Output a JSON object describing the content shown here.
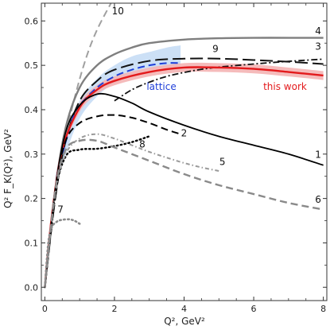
{
  "chart_data": {
    "type": "line",
    "xlabel": "Q², GeV²",
    "ylabel": "Q² F_K(Q²), GeV²",
    "xlim": [
      -0.1,
      8.1
    ],
    "ylim": [
      -0.03,
      0.64
    ],
    "x_ticks": [
      {
        "value": 0,
        "label": "0"
      },
      {
        "value": 2,
        "label": "2"
      },
      {
        "value": 4,
        "label": "4"
      },
      {
        "value": 6,
        "label": "6"
      },
      {
        "value": 8,
        "label": "8"
      }
    ],
    "y_ticks": [
      {
        "value": 0.0,
        "label": "0.0"
      },
      {
        "value": 0.1,
        "label": "0.1"
      },
      {
        "value": 0.2,
        "label": "0.2"
      },
      {
        "value": 0.3,
        "label": "0.3"
      },
      {
        "value": 0.4,
        "label": "0.4"
      },
      {
        "value": 0.5,
        "label": "0.5"
      },
      {
        "value": 0.6,
        "label": "0.6"
      }
    ],
    "grid": false,
    "bands": [
      {
        "id": "lattice-band",
        "color": "#c6ddf5",
        "x": [
          0.3,
          0.6,
          1.0,
          1.5,
          2.0,
          2.5,
          3.0,
          3.5,
          3.9
        ],
        "upper": [
          0.25,
          0.35,
          0.42,
          0.47,
          0.5,
          0.52,
          0.53,
          0.54,
          0.545
        ],
        "lower": [
          0.22,
          0.3,
          0.38,
          0.43,
          0.46,
          0.475,
          0.49,
          0.495,
          0.5
        ]
      },
      {
        "id": "this-work-band",
        "color": "#f4b4b4",
        "x": [
          0.0,
          0.2,
          0.5,
          1.0,
          1.5,
          2.0,
          3.0,
          4.0,
          5.0,
          6.0,
          7.0,
          8.0
        ],
        "upper": [
          0.0,
          0.17,
          0.32,
          0.415,
          0.455,
          0.475,
          0.495,
          0.505,
          0.505,
          0.502,
          0.495,
          0.487
        ],
        "lower": [
          0.0,
          0.15,
          0.3,
          0.395,
          0.435,
          0.455,
          0.475,
          0.485,
          0.485,
          0.482,
          0.475,
          0.467
        ]
      }
    ],
    "series": [
      {
        "id": "curve-10",
        "label": "10",
        "color": "#a0a0a0",
        "style": "dashed",
        "width": 2,
        "x": [
          0.0,
          0.3,
          0.6,
          0.9,
          1.2,
          1.5,
          1.9
        ],
        "y": [
          0.0,
          0.2,
          0.34,
          0.44,
          0.52,
          0.58,
          0.64
        ],
        "label_xy": [
          2.1,
          0.615
        ]
      },
      {
        "id": "curve-4",
        "label": "4",
        "color": "#7f7f7f",
        "style": "solid",
        "width": 2.4,
        "x": [
          0.0,
          0.3,
          0.6,
          1.0,
          1.5,
          2.0,
          2.5,
          3.0,
          4.0,
          5.0,
          6.0,
          7.0,
          8.0
        ],
        "y": [
          0.0,
          0.22,
          0.36,
          0.45,
          0.5,
          0.525,
          0.54,
          0.55,
          0.558,
          0.561,
          0.562,
          0.562,
          0.562
        ],
        "label_xy": [
          7.85,
          0.57
        ]
      },
      {
        "id": "curve-9",
        "label": "9",
        "color": "#111111",
        "style": "longdash",
        "width": 2,
        "x": [
          0.0,
          0.3,
          0.6,
          1.0,
          1.5,
          2.0,
          3.0,
          4.0,
          5.0,
          6.0,
          7.0,
          8.0
        ],
        "y": [
          0.0,
          0.2,
          0.33,
          0.42,
          0.465,
          0.49,
          0.51,
          0.515,
          0.515,
          0.512,
          0.508,
          0.503
        ],
        "label_xy": [
          4.9,
          0.53
        ]
      },
      {
        "id": "curve-3",
        "label": "3",
        "color": "#111111",
        "style": "dashdot",
        "width": 1.8,
        "x": [
          2.0,
          2.5,
          3.0,
          3.5,
          4.0,
          4.5,
          5.0,
          6.0,
          7.0,
          8.0
        ],
        "y": [
          0.42,
          0.445,
          0.462,
          0.475,
          0.484,
          0.491,
          0.496,
          0.503,
          0.509,
          0.514
        ],
        "label_xy": [
          7.85,
          0.535
        ]
      },
      {
        "id": "curve-lattice",
        "label": "",
        "color": "#1f3fd9",
        "style": "dashed",
        "width": 2,
        "x": [
          0.5,
          0.8,
          1.0,
          1.5,
          2.0,
          2.5,
          3.0,
          3.5,
          3.9
        ],
        "y": [
          0.3,
          0.38,
          0.41,
          0.45,
          0.475,
          0.49,
          0.5,
          0.505,
          0.505
        ]
      },
      {
        "id": "curve-this-work",
        "label": "",
        "color": "#e31a1c",
        "style": "solid",
        "width": 2.4,
        "x": [
          0.0,
          0.2,
          0.5,
          1.0,
          1.5,
          2.0,
          3.0,
          4.0,
          5.0,
          6.0,
          7.0,
          8.0
        ],
        "y": [
          0.0,
          0.16,
          0.31,
          0.405,
          0.445,
          0.465,
          0.485,
          0.495,
          0.495,
          0.492,
          0.485,
          0.477
        ]
      },
      {
        "id": "curve-1",
        "label": "1",
        "color": "#000000",
        "style": "solid",
        "width": 1.8,
        "x": [
          0.0,
          0.3,
          0.6,
          1.0,
          1.5,
          2.0,
          2.5,
          3.0,
          4.0,
          5.0,
          6.0,
          7.0,
          8.0
        ],
        "y": [
          0.0,
          0.22,
          0.35,
          0.41,
          0.435,
          0.43,
          0.415,
          0.395,
          0.365,
          0.34,
          0.32,
          0.3,
          0.275
        ],
        "label_xy": [
          7.85,
          0.292
        ]
      },
      {
        "id": "curve-2",
        "label": "2",
        "color": "#000000",
        "style": "dashed",
        "width": 2,
        "x": [
          0.0,
          0.3,
          0.6,
          1.0,
          1.5,
          2.0,
          2.5,
          3.0,
          3.5,
          3.9
        ],
        "y": [
          0.0,
          0.22,
          0.33,
          0.37,
          0.385,
          0.388,
          0.382,
          0.37,
          0.355,
          0.345
        ],
        "label_xy": [
          4.0,
          0.34
        ]
      },
      {
        "id": "curve-8",
        "label": "8",
        "color": "#000000",
        "style": "dotted",
        "width": 2.4,
        "x": [
          0.0,
          0.3,
          0.6,
          1.0,
          1.5,
          2.0,
          2.5,
          3.0
        ],
        "y": [
          0.0,
          0.21,
          0.295,
          0.31,
          0.312,
          0.318,
          0.327,
          0.34
        ],
        "label_xy": [
          2.8,
          0.315
        ]
      },
      {
        "id": "curve-5",
        "label": "5",
        "color": "#9a9a9a",
        "style": "dotdash",
        "width": 2,
        "x": [
          0.0,
          0.3,
          0.6,
          1.0,
          1.5,
          2.0,
          2.5,
          3.0,
          3.5,
          4.0,
          4.5,
          5.0
        ],
        "y": [
          0.0,
          0.21,
          0.3,
          0.335,
          0.345,
          0.335,
          0.32,
          0.305,
          0.292,
          0.28,
          0.27,
          0.262
        ],
        "label_xy": [
          5.1,
          0.275
        ]
      },
      {
        "id": "curve-6",
        "label": "6",
        "color": "#8a8a8a",
        "style": "dashed",
        "width": 2.4,
        "x": [
          0.0,
          0.3,
          0.6,
          1.0,
          1.5,
          2.0,
          3.0,
          4.0,
          5.0,
          6.0,
          7.0,
          8.0
        ],
        "y": [
          0.0,
          0.22,
          0.31,
          0.33,
          0.33,
          0.315,
          0.285,
          0.255,
          0.23,
          0.21,
          0.19,
          0.175
        ],
        "label_xy": [
          7.85,
          0.19
        ]
      },
      {
        "id": "curve-7",
        "label": "7",
        "color": "#8a8a8a",
        "style": "dotted",
        "width": 2.6,
        "x": [
          0.0,
          0.1,
          0.2,
          0.35,
          0.5,
          0.7,
          0.85,
          1.0
        ],
        "y": [
          0.0,
          0.1,
          0.135,
          0.148,
          0.152,
          0.153,
          0.15,
          0.143
        ],
        "label_xy": [
          0.45,
          0.168
        ]
      }
    ],
    "annotations": [
      {
        "id": "lattice-label",
        "text": "lattice",
        "color": "#1f3fd9",
        "xy": [
          3.35,
          0.445
        ]
      },
      {
        "id": "this-work-label",
        "text": "this work",
        "color": "#e31a1c",
        "xy": [
          6.9,
          0.445
        ]
      }
    ]
  }
}
